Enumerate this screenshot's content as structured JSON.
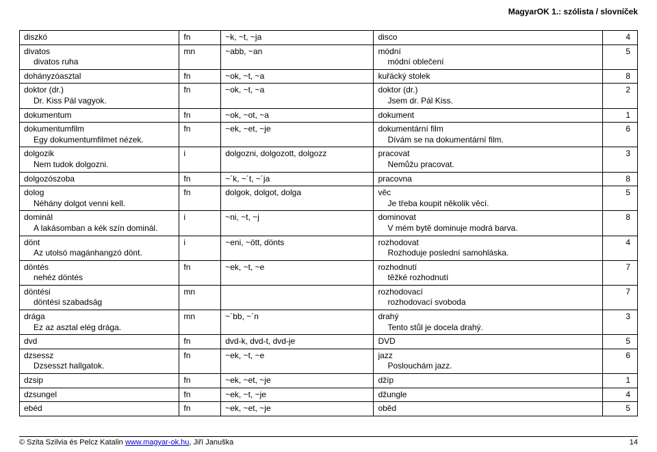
{
  "header": {
    "title_right": "MagyarOK 1.: szólista / slovníček"
  },
  "footer": {
    "copyright": "© Szita Szilvia és Pelcz Katalin ",
    "link_text": "www.magyar-ok.hu",
    "author_tail": ", Jiří Januška",
    "page": "14"
  },
  "rows": [
    {
      "c1a": "diszkó",
      "c1b": "",
      "c2": "fn",
      "c3": "~k, ~t, ~ja",
      "c4a": "disco",
      "c4b": "",
      "c5": "4"
    },
    {
      "c1a": "divatos",
      "c1b": "divatos ruha",
      "c2": "mn",
      "c3": "~abb, ~an",
      "c4a": "módní",
      "c4b": "módní oblečení",
      "c5": "5"
    },
    {
      "c1a": "dohányzóasztal",
      "c1b": "",
      "c2": "fn",
      "c3": "~ok, ~t, ~a",
      "c4a": "kuřácký stolek",
      "c4b": "",
      "c5": "8"
    },
    {
      "c1a": "doktor (dr.)",
      "c1b": "Dr. Kiss Pál vagyok.",
      "c2": "fn",
      "c3": "~ok, ~t, ~a",
      "c4a": "doktor (dr.)",
      "c4b": "Jsem dr. Pál Kiss.",
      "c5": "2"
    },
    {
      "c1a": "dokumentum",
      "c1b": "",
      "c2": "fn",
      "c3": "~ok, ~ot, ~a",
      "c4a": "dokument",
      "c4b": "",
      "c5": "1"
    },
    {
      "c1a": "dokumentumfilm",
      "c1b": "Egy dokumentumfilmet nézek.",
      "c2": "fn",
      "c3": "~ek, ~et, ~je",
      "c4a": "dokumentární film",
      "c4b": "Dívám se na dokumentární film.",
      "c5": "6"
    },
    {
      "c1a": "dolgozik",
      "c1b": "Nem tudok dolgozni.",
      "c2": "i",
      "c3": "dolgozni, dolgozott, dolgozz",
      "c4a": "pracovat",
      "c4b": "Nemůžu pracovat.",
      "c5": "3"
    },
    {
      "c1a": "dolgozószoba",
      "c1b": "",
      "c2": "fn",
      "c3": "~´k, ~´t, ~´ja",
      "c4a": "pracovna",
      "c4b": "",
      "c5": "8"
    },
    {
      "c1a": "dolog",
      "c1b": "Néhány dolgot venni kell.",
      "c2": "fn",
      "c3": "dolgok, dolgot, dolga",
      "c4a": "věc",
      "c4b": "Je třeba koupit několik věcí.",
      "c5": "5"
    },
    {
      "c1a": "dominál",
      "c1b": "A lakásomban a kék szín dominál.",
      "c2": "i",
      "c3": "~ni, ~t, ~j",
      "c4a": "dominovat",
      "c4b": "V mém bytě dominuje modrá barva.",
      "c5": "8"
    },
    {
      "c1a": "dönt",
      "c1b": "Az utolsó magánhangzó dönt.",
      "c2": "i",
      "c3": "~eni, ~ött, dönts",
      "c4a": "rozhodovat",
      "c4b": "Rozhoduje poslední samohláska.",
      "c5": "4"
    },
    {
      "c1a": "döntés",
      "c1b": "nehéz döntés",
      "c2": "fn",
      "c3": "~ek, ~t, ~e",
      "c4a": "rozhodnutí",
      "c4b": "těžké rozhodnutí",
      "c5": "7"
    },
    {
      "c1a": "döntési",
      "c1b": "döntési szabadság",
      "c2": "mn",
      "c3": "",
      "c4a": "rozhodovací",
      "c4b": "rozhodovací svoboda",
      "c5": "7"
    },
    {
      "c1a": "drága",
      "c1b": "Ez az asztal elég drága.",
      "c2": "mn",
      "c3": "~´bb, ~´n",
      "c4a": "drahý",
      "c4b": "Tento stůl je docela drahý.",
      "c5": "3"
    },
    {
      "c1a": "dvd",
      "c1b": "",
      "c2": "fn",
      "c3": "dvd-k, dvd-t, dvd-je",
      "c4a": "DVD",
      "c4b": "",
      "c5": "5"
    },
    {
      "c1a": "dzsessz",
      "c1b": "Dzsesszt hallgatok.",
      "c2": "fn",
      "c3": "~ek, ~t, ~e",
      "c4a": "jazz",
      "c4b": "Poslouchám jazz.",
      "c5": "6"
    },
    {
      "c1a": "dzsip",
      "c1b": "",
      "c2": "fn",
      "c3": "~ek, ~et, ~je",
      "c4a": "džíp",
      "c4b": "",
      "c5": "1"
    },
    {
      "c1a": "dzsungel",
      "c1b": "",
      "c2": "fn",
      "c3": "~ek, ~t, ~je",
      "c4a": "džungle",
      "c4b": "",
      "c5": "4"
    },
    {
      "c1a": "ebéd",
      "c1b": "",
      "c2": "fn",
      "c3": "~ek, ~et, ~je",
      "c4a": "oběd",
      "c4b": "",
      "c5": "5"
    }
  ]
}
